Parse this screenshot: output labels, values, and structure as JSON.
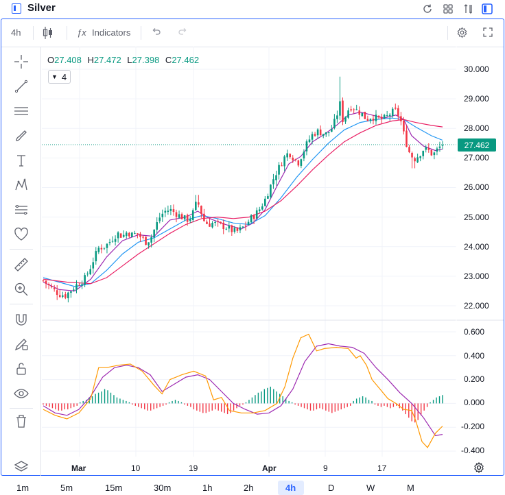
{
  "window": {
    "title": "Silver"
  },
  "toolbar": {
    "interval": "4h",
    "indicators_label": "Indicators"
  },
  "legend": {
    "o_label": "O",
    "o_value": "27.408",
    "h_label": "H",
    "h_value": "27.472",
    "l_label": "L",
    "l_value": "27.398",
    "c_label": "C",
    "c_value": "27.462",
    "indicator_count": "4"
  },
  "colors": {
    "up": "#089981",
    "down": "#f23645",
    "ma_fast": "#9c27b0",
    "ma_mid": "#2196f3",
    "ma_slow": "#e91e63",
    "macd_line": "#ff9800",
    "accent": "#2962ff"
  },
  "price_axis": {
    "ticks": [
      "30.000",
      "29.000",
      "28.000",
      "27.000",
      "26.000",
      "25.000",
      "24.000",
      "23.000",
      "22.000"
    ],
    "last_price": "27.462"
  },
  "osc_axis": {
    "ticks": [
      "0.600",
      "0.400",
      "0.200",
      "0.000",
      "-0.200",
      "-0.400"
    ]
  },
  "time_axis": {
    "labels": [
      "Mar",
      "10",
      "19",
      "Apr",
      "9",
      "17"
    ]
  },
  "timeframes": [
    "1m",
    "5m",
    "15m",
    "30m",
    "1h",
    "2h",
    "4h",
    "D",
    "W",
    "M"
  ],
  "active_timeframe": "4h",
  "chart_data": {
    "type": "candlestick",
    "symbol": "Silver",
    "interval": "4h",
    "ylim": [
      21.6,
      30.4
    ],
    "close_path": [
      [
        0,
        22.85
      ],
      [
        10,
        22.6
      ],
      [
        20,
        22.4
      ],
      [
        28,
        22.35
      ],
      [
        36,
        22.55
      ],
      [
        44,
        22.75
      ],
      [
        52,
        22.9
      ],
      [
        58,
        23.2
      ],
      [
        64,
        23.6
      ],
      [
        70,
        23.95
      ],
      [
        76,
        24.0
      ],
      [
        82,
        24.1
      ],
      [
        88,
        24.3
      ],
      [
        94,
        24.45
      ],
      [
        100,
        24.35
      ],
      [
        106,
        24.5
      ],
      [
        112,
        24.4
      ],
      [
        118,
        24.45
      ],
      [
        124,
        24.3
      ],
      [
        130,
        24.15
      ],
      [
        136,
        24.3
      ],
      [
        142,
        24.7
      ],
      [
        148,
        25.05
      ],
      [
        154,
        25.2
      ],
      [
        160,
        25.25
      ],
      [
        166,
        25.15
      ],
      [
        172,
        25.05
      ],
      [
        178,
        24.95
      ],
      [
        184,
        24.9
      ],
      [
        190,
        25.2
      ],
      [
        194,
        25.55
      ],
      [
        198,
        25.3
      ],
      [
        202,
        24.9
      ],
      [
        208,
        24.75
      ],
      [
        214,
        24.8
      ],
      [
        220,
        24.75
      ],
      [
        226,
        24.7
      ],
      [
        232,
        24.65
      ],
      [
        238,
        24.55
      ],
      [
        244,
        24.5
      ],
      [
        250,
        24.6
      ],
      [
        256,
        24.75
      ],
      [
        262,
        24.95
      ],
      [
        268,
        25.1
      ],
      [
        274,
        25.3
      ],
      [
        280,
        25.6
      ],
      [
        286,
        26.0
      ],
      [
        292,
        26.4
      ],
      [
        298,
        26.7
      ],
      [
        304,
        27.0
      ],
      [
        310,
        27.2
      ],
      [
        316,
        27.0
      ],
      [
        322,
        26.85
      ],
      [
        328,
        27.2
      ],
      [
        334,
        27.55
      ],
      [
        340,
        27.8
      ],
      [
        346,
        27.9
      ],
      [
        352,
        27.85
      ],
      [
        358,
        27.8
      ],
      [
        364,
        28.0
      ],
      [
        370,
        28.35
      ],
      [
        374,
        28.9
      ],
      [
        378,
        28.3
      ],
      [
        382,
        28.45
      ],
      [
        386,
        28.7
      ],
      [
        390,
        28.75
      ],
      [
        396,
        28.6
      ],
      [
        402,
        28.5
      ],
      [
        408,
        28.3
      ],
      [
        414,
        28.4
      ],
      [
        420,
        28.35
      ],
      [
        426,
        28.3
      ],
      [
        432,
        28.35
      ],
      [
        438,
        28.5
      ],
      [
        444,
        28.6
      ],
      [
        450,
        28.4
      ],
      [
        456,
        27.7
      ],
      [
        462,
        27.2
      ],
      [
        468,
        26.95
      ],
      [
        474,
        27.1
      ],
      [
        480,
        27.3
      ],
      [
        486,
        27.25
      ],
      [
        492,
        27.1
      ],
      [
        498,
        27.3
      ],
      [
        504,
        27.46
      ]
    ],
    "series": [
      {
        "type": "ma",
        "color_key": "ma_fast",
        "path": [
          [
            0,
            22.8
          ],
          [
            20,
            22.55
          ],
          [
            40,
            22.5
          ],
          [
            60,
            22.9
          ],
          [
            80,
            23.65
          ],
          [
            100,
            24.2
          ],
          [
            120,
            24.4
          ],
          [
            140,
            24.35
          ],
          [
            160,
            24.9
          ],
          [
            180,
            25.0
          ],
          [
            195,
            25.2
          ],
          [
            210,
            24.95
          ],
          [
            230,
            24.75
          ],
          [
            250,
            24.6
          ],
          [
            265,
            24.8
          ],
          [
            280,
            25.25
          ],
          [
            295,
            26.05
          ],
          [
            310,
            26.8
          ],
          [
            325,
            27.05
          ],
          [
            340,
            27.55
          ],
          [
            355,
            27.8
          ],
          [
            370,
            28.1
          ],
          [
            385,
            28.45
          ],
          [
            400,
            28.55
          ],
          [
            415,
            28.45
          ],
          [
            430,
            28.35
          ],
          [
            445,
            28.45
          ],
          [
            455,
            28.3
          ],
          [
            465,
            27.75
          ],
          [
            480,
            27.4
          ],
          [
            495,
            27.25
          ],
          [
            504,
            27.3
          ]
        ]
      },
      {
        "type": "ma",
        "color_key": "ma_mid",
        "path": [
          [
            0,
            22.95
          ],
          [
            20,
            22.8
          ],
          [
            40,
            22.65
          ],
          [
            60,
            22.75
          ],
          [
            80,
            23.2
          ],
          [
            100,
            23.75
          ],
          [
            120,
            24.15
          ],
          [
            140,
            24.3
          ],
          [
            160,
            24.6
          ],
          [
            180,
            24.9
          ],
          [
            200,
            25.05
          ],
          [
            220,
            24.95
          ],
          [
            240,
            24.8
          ],
          [
            260,
            24.75
          ],
          [
            280,
            25.05
          ],
          [
            300,
            25.65
          ],
          [
            320,
            26.35
          ],
          [
            340,
            26.95
          ],
          [
            360,
            27.5
          ],
          [
            380,
            27.95
          ],
          [
            400,
            28.2
          ],
          [
            420,
            28.3
          ],
          [
            440,
            28.35
          ],
          [
            455,
            28.3
          ],
          [
            470,
            28.05
          ],
          [
            490,
            27.75
          ],
          [
            504,
            27.6
          ]
        ]
      },
      {
        "type": "ma",
        "color_key": "ma_slow",
        "path": [
          [
            0,
            22.9
          ],
          [
            30,
            22.8
          ],
          [
            60,
            22.75
          ],
          [
            80,
            22.95
          ],
          [
            100,
            23.35
          ],
          [
            120,
            23.75
          ],
          [
            140,
            24.1
          ],
          [
            160,
            24.45
          ],
          [
            180,
            24.75
          ],
          [
            200,
            24.95
          ],
          [
            220,
            25.0
          ],
          [
            240,
            24.95
          ],
          [
            260,
            25.0
          ],
          [
            280,
            25.2
          ],
          [
            300,
            25.55
          ],
          [
            320,
            26.05
          ],
          [
            340,
            26.6
          ],
          [
            360,
            27.1
          ],
          [
            380,
            27.55
          ],
          [
            400,
            27.85
          ],
          [
            420,
            28.1
          ],
          [
            440,
            28.25
          ],
          [
            455,
            28.3
          ],
          [
            470,
            28.2
          ],
          [
            490,
            28.1
          ],
          [
            504,
            28.05
          ]
        ]
      }
    ],
    "oscillator": {
      "ylim": [
        -0.46,
        0.66
      ],
      "line_a": [
        [
          0,
          -0.02
        ],
        [
          15,
          -0.08
        ],
        [
          30,
          -0.1
        ],
        [
          45,
          -0.05
        ],
        [
          60,
          0.06
        ],
        [
          75,
          0.22
        ],
        [
          90,
          0.3
        ],
        [
          105,
          0.32
        ],
        [
          120,
          0.3
        ],
        [
          135,
          0.24
        ],
        [
          150,
          0.1
        ],
        [
          165,
          0.16
        ],
        [
          180,
          0.22
        ],
        [
          195,
          0.24
        ],
        [
          210,
          0.2
        ],
        [
          225,
          0.1
        ],
        [
          240,
          0.0
        ],
        [
          255,
          -0.05
        ],
        [
          270,
          -0.09
        ],
        [
          285,
          -0.08
        ],
        [
          300,
          -0.02
        ],
        [
          315,
          0.12
        ],
        [
          330,
          0.35
        ],
        [
          345,
          0.48
        ],
        [
          360,
          0.5
        ],
        [
          375,
          0.48
        ],
        [
          390,
          0.47
        ],
        [
          405,
          0.42
        ],
        [
          420,
          0.3
        ],
        [
          435,
          0.2
        ],
        [
          450,
          0.09
        ],
        [
          465,
          0.0
        ],
        [
          480,
          -0.12
        ],
        [
          495,
          -0.27
        ],
        [
          504,
          -0.26
        ]
      ],
      "line_b": [
        [
          0,
          -0.05
        ],
        [
          15,
          -0.1
        ],
        [
          30,
          -0.13
        ],
        [
          45,
          -0.08
        ],
        [
          60,
          0.04
        ],
        [
          70,
          0.3
        ],
        [
          80,
          0.3
        ],
        [
          95,
          0.32
        ],
        [
          110,
          0.33
        ],
        [
          125,
          0.27
        ],
        [
          140,
          0.15
        ],
        [
          150,
          0.08
        ],
        [
          160,
          0.2
        ],
        [
          175,
          0.24
        ],
        [
          190,
          0.27
        ],
        [
          205,
          0.23
        ],
        [
          215,
          0.03
        ],
        [
          225,
          0.05
        ],
        [
          235,
          -0.06
        ],
        [
          250,
          -0.08
        ],
        [
          265,
          -0.08
        ],
        [
          280,
          -0.06
        ],
        [
          295,
          0.0
        ],
        [
          305,
          0.14
        ],
        [
          315,
          0.38
        ],
        [
          325,
          0.55
        ],
        [
          335,
          0.58
        ],
        [
          345,
          0.44
        ],
        [
          355,
          0.46
        ],
        [
          370,
          0.47
        ],
        [
          385,
          0.46
        ],
        [
          395,
          0.38
        ],
        [
          400,
          0.4
        ],
        [
          408,
          0.32
        ],
        [
          415,
          0.2
        ],
        [
          425,
          0.12
        ],
        [
          435,
          0.04
        ],
        [
          445,
          0.0
        ],
        [
          455,
          -0.05
        ],
        [
          465,
          -0.06
        ],
        [
          470,
          -0.14
        ],
        [
          478,
          -0.32
        ],
        [
          485,
          -0.37
        ],
        [
          495,
          -0.25
        ],
        [
          504,
          -0.19
        ]
      ],
      "histogram": [
        -0.01,
        -0.02,
        -0.03,
        -0.04,
        -0.05,
        -0.06,
        -0.06,
        -0.05,
        -0.05,
        -0.04,
        -0.03,
        -0.02,
        0.01,
        0.02,
        0.03,
        0.05,
        0.06,
        0.08,
        0.09,
        0.1,
        0.12,
        0.11,
        0.09,
        0.07,
        0.05,
        0.04,
        0.03,
        0.02,
        0.01,
        -0.01,
        -0.02,
        -0.03,
        -0.04,
        -0.05,
        -0.06,
        -0.06,
        -0.05,
        -0.04,
        -0.03,
        -0.02,
        -0.01,
        0.01,
        0.02,
        0.03,
        0.02,
        0.01,
        -0.01,
        -0.02,
        -0.03,
        -0.05,
        -0.06,
        -0.07,
        -0.08,
        -0.08,
        -0.07,
        -0.06,
        -0.05,
        -0.06,
        -0.07,
        -0.08,
        -0.09,
        -0.08,
        -0.06,
        -0.04,
        -0.02,
        -0.01,
        0.01,
        0.03,
        0.05,
        0.07,
        0.09,
        0.1,
        0.12,
        0.13,
        0.14,
        0.12,
        0.1,
        0.08,
        0.06,
        0.04,
        0.02,
        0.01,
        -0.01,
        -0.02,
        -0.03,
        -0.04,
        -0.05,
        -0.06,
        -0.06,
        -0.05,
        -0.04,
        -0.05,
        -0.06,
        -0.07,
        -0.08,
        -0.07,
        -0.06,
        -0.05,
        -0.04,
        -0.03,
        -0.02,
        0.02,
        0.04,
        0.05,
        0.06,
        0.05,
        0.03,
        0.02,
        -0.01,
        -0.02,
        -0.03,
        -0.02,
        -0.03,
        -0.04,
        -0.03,
        -0.02,
        -0.04,
        -0.06,
        -0.09,
        -0.12,
        -0.15,
        -0.16,
        -0.14,
        -0.1,
        -0.06,
        -0.03,
        0.01,
        0.03,
        0.05,
        0.06,
        0.07
      ]
    }
  }
}
